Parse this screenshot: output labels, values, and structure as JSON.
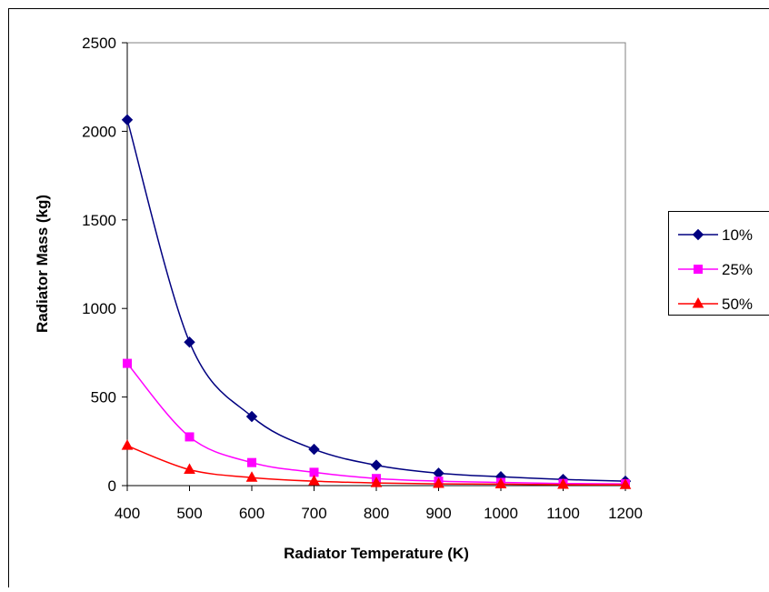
{
  "chart_data": {
    "type": "line",
    "title": "",
    "xlabel": "Radiator Temperature (K)",
    "ylabel": "Radiator Mass (kg)",
    "x": [
      400,
      500,
      600,
      700,
      800,
      900,
      1000,
      1100,
      1200
    ],
    "xlim": [
      400,
      1200
    ],
    "ylim": [
      0,
      2500
    ],
    "x_ticks": [
      400,
      500,
      600,
      700,
      800,
      900,
      1000,
      1100,
      1200
    ],
    "y_ticks": [
      0,
      500,
      1000,
      1500,
      2000,
      2500
    ],
    "grid": false,
    "legend": "right",
    "series": [
      {
        "name": "10%",
        "color": "#000080",
        "marker": "diamond",
        "values": [
          2065,
          810,
          390,
          205,
          115,
          70,
          50,
          35,
          25
        ]
      },
      {
        "name": "25%",
        "color": "#FF00FF",
        "marker": "square",
        "values": [
          690,
          275,
          130,
          75,
          40,
          25,
          18,
          12,
          10
        ]
      },
      {
        "name": "50%",
        "color": "#FF0000",
        "marker": "triangle",
        "values": [
          225,
          90,
          45,
          25,
          15,
          10,
          8,
          5,
          4
        ]
      }
    ]
  }
}
